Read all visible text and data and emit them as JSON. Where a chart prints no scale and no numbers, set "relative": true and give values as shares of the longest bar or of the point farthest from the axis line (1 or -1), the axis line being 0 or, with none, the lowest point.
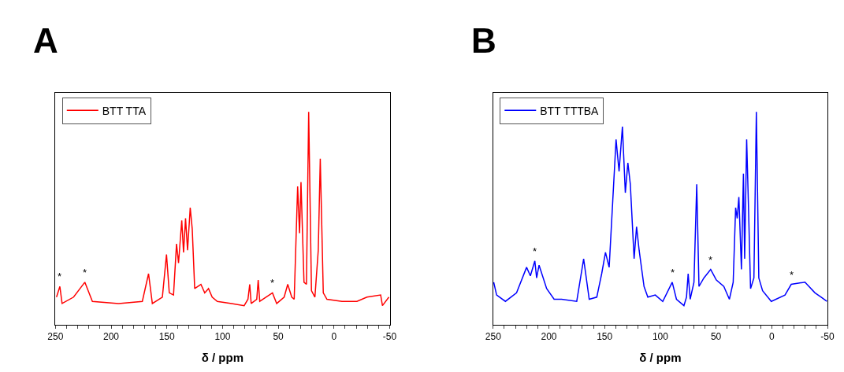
{
  "chart_data": [
    {
      "type": "line",
      "title": "A",
      "xlabel": "δ / ppm",
      "relative": true,
      "legend": "top left",
      "marker": "none",
      "line_style": "solid",
      "xlim": [
        250,
        -50
      ],
      "xticks": [
        250,
        {
          "value": 240,
          "label": null
        },
        {
          "value": 230,
          "label": null
        },
        {
          "value": 220,
          "label": null
        },
        {
          "value": 210,
          "label": null
        },
        200,
        {
          "value": 190,
          "label": null
        },
        {
          "value": 180,
          "label": null
        },
        {
          "value": 170,
          "label": null
        },
        {
          "value": 160,
          "label": null
        },
        150,
        {
          "value": 140,
          "label": null
        },
        {
          "value": 130,
          "label": null
        },
        {
          "value": 120,
          "label": null
        },
        {
          "value": 110,
          "label": null
        },
        100,
        {
          "value": 90,
          "label": null
        },
        {
          "value": 80,
          "label": null
        },
        {
          "value": 70,
          "label": null
        },
        {
          "value": 60,
          "label": null
        },
        50,
        {
          "value": 40,
          "label": null
        },
        {
          "value": 30,
          "label": null
        },
        {
          "value": 20,
          "label": null
        },
        {
          "value": 10,
          "label": null
        },
        0,
        {
          "value": -10,
          "label": null
        },
        {
          "value": -20,
          "label": null
        },
        {
          "value": -30,
          "label": null
        },
        {
          "value": -40,
          "label": null
        },
        -50
      ],
      "x": [
        249,
        246,
        244,
        233.7,
        223.6,
        216.8,
        193.3,
        172,
        166.4,
        163,
        154,
        150.3,
        147.8,
        144,
        141.3,
        139.5,
        136.6,
        135,
        133.2,
        131.4,
        129,
        127.2,
        125,
        119.4,
        116,
        112.6,
        109.3,
        104.7,
        91.8,
        80.6,
        77.2,
        75.6,
        74.3,
        69.3,
        68,
        66.6,
        55.2,
        51.4,
        44.7,
        41.5,
        37.9,
        35.7,
        32.6,
        30.9,
        29.6,
        26.9,
        24.7,
        22.7,
        20.2,
        17.1,
        14.1,
        12.3,
        9.6,
        6.3,
        -7.2,
        -20.6,
        -29.6,
        -41.9,
        -43.5,
        -49.3
      ],
      "series": [
        {
          "name": "BTT TTA",
          "color": "#ff0000",
          "values": [
            0.13,
            0.18,
            0.1,
            0.13,
            0.2,
            0.11,
            0.1,
            0.11,
            0.24,
            0.1,
            0.13,
            0.33,
            0.15,
            0.14,
            0.38,
            0.29,
            0.49,
            0.34,
            0.5,
            0.35,
            0.55,
            0.45,
            0.17,
            0.19,
            0.15,
            0.17,
            0.13,
            0.11,
            0.1,
            0.09,
            0.12,
            0.19,
            0.1,
            0.12,
            0.21,
            0.11,
            0.15,
            0.1,
            0.13,
            0.19,
            0.13,
            0.12,
            0.65,
            0.43,
            0.67,
            0.2,
            0.19,
            1.0,
            0.16,
            0.13,
            0.35,
            0.78,
            0.15,
            0.12,
            0.11,
            0.11,
            0.13,
            0.14,
            0.09,
            0.13
          ]
        }
      ],
      "annotations": [
        {
          "text": "*",
          "x": 246,
          "y": 0.18
        },
        {
          "text": "*",
          "x": 223.6,
          "y": 0.2
        },
        {
          "text": "*",
          "x": 55.2,
          "y": 0.15
        }
      ]
    },
    {
      "type": "line",
      "title": "B",
      "xlabel": "δ / ppm",
      "relative": true,
      "legend": "top left",
      "marker": "none",
      "line_style": "solid",
      "xlim": [
        250,
        -50
      ],
      "xticks": [
        250,
        {
          "value": 240,
          "label": null
        },
        {
          "value": 230,
          "label": null
        },
        {
          "value": 220,
          "label": null
        },
        {
          "value": 210,
          "label": null
        },
        200,
        {
          "value": 190,
          "label": null
        },
        {
          "value": 180,
          "label": null
        },
        {
          "value": 170,
          "label": null
        },
        {
          "value": 160,
          "label": null
        },
        150,
        {
          "value": 140,
          "label": null
        },
        {
          "value": 130,
          "label": null
        },
        {
          "value": 120,
          "label": null
        },
        {
          "value": 110,
          "label": null
        },
        100,
        {
          "value": 90,
          "label": null
        },
        {
          "value": 80,
          "label": null
        },
        {
          "value": 70,
          "label": null
        },
        {
          "value": 60,
          "label": null
        },
        50,
        {
          "value": 40,
          "label": null
        },
        {
          "value": 30,
          "label": null
        },
        {
          "value": 20,
          "label": null
        },
        {
          "value": 10,
          "label": null
        },
        0,
        {
          "value": -10,
          "label": null
        },
        {
          "value": -20,
          "label": null
        },
        {
          "value": -30,
          "label": null
        },
        {
          "value": -40,
          "label": null
        },
        -50
      ],
      "x": [
        249.5,
        246.9,
        239,
        229,
        220,
        216.6,
        212.6,
        211,
        208.8,
        202,
        195.3,
        188.6,
        175,
        168.8,
        163.8,
        157,
        152.6,
        149.2,
        145.9,
        139.7,
        137,
        134,
        131.4,
        129.1,
        126.9,
        123.5,
        121.3,
        119,
        114.6,
        111.2,
        104.5,
        97.8,
        89.3,
        85.5,
        78.8,
        76.5,
        75,
        73.2,
        69.8,
        67.3,
        65.3,
        60.9,
        54.8,
        49.7,
        43,
        38,
        34.6,
        32.4,
        31,
        29.5,
        27.2,
        25.4,
        24.3,
        22.5,
        21,
        19,
        16,
        13.8,
        11.6,
        8.2,
        0.4,
        -11.9,
        -17.5,
        -29.8,
        -38.8,
        -44.4,
        -49.5
      ],
      "series": [
        {
          "name": "BTT TTTBA",
          "color": "#0000ff",
          "values": [
            0.2,
            0.14,
            0.11,
            0.15,
            0.27,
            0.23,
            0.3,
            0.22,
            0.28,
            0.17,
            0.12,
            0.12,
            0.11,
            0.31,
            0.12,
            0.13,
            0.24,
            0.34,
            0.27,
            0.87,
            0.72,
            0.93,
            0.62,
            0.76,
            0.66,
            0.31,
            0.46,
            0.35,
            0.18,
            0.13,
            0.14,
            0.11,
            0.2,
            0.12,
            0.09,
            0.13,
            0.24,
            0.12,
            0.2,
            0.66,
            0.18,
            0.22,
            0.26,
            0.21,
            0.18,
            0.12,
            0.2,
            0.55,
            0.5,
            0.6,
            0.26,
            0.71,
            0.31,
            0.87,
            0.58,
            0.17,
            0.22,
            1.0,
            0.22,
            0.16,
            0.11,
            0.14,
            0.19,
            0.2,
            0.15,
            0.13,
            0.11
          ]
        }
      ],
      "annotations": [
        {
          "text": "*",
          "x": 212.6,
          "y": 0.3
        },
        {
          "text": "*",
          "x": 89.3,
          "y": 0.2
        },
        {
          "text": "*",
          "x": 54.8,
          "y": 0.26
        },
        {
          "text": "*",
          "x": -17.5,
          "y": 0.19
        }
      ]
    }
  ]
}
